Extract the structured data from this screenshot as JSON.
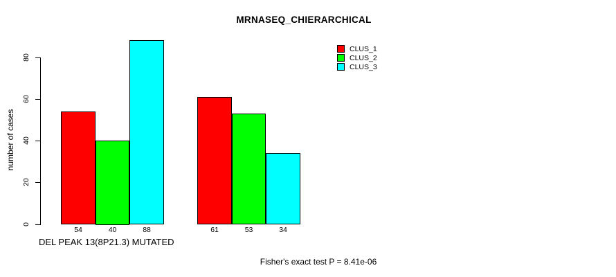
{
  "chart_data": {
    "type": "bar",
    "title": "MRNASEQ_CHIERARCHICAL",
    "ylabel": "number of cases",
    "xlabel": "DEL PEAK 13(8P21.3) MUTATED",
    "annotation": "Fisher's exact test P = 8.41e-06",
    "series": [
      {
        "name": "CLUS_1",
        "color": "#ff0000",
        "values": [
          54,
          61
        ]
      },
      {
        "name": "CLUS_2",
        "color": "#00ff00",
        "values": [
          40,
          53
        ]
      },
      {
        "name": "CLUS_3",
        "color": "#00ffff",
        "values": [
          88,
          34
        ]
      }
    ],
    "yticks": [
      0,
      20,
      40,
      60,
      80
    ],
    "ylim": [
      0,
      88
    ],
    "grid": false,
    "bar_value_labels": [
      [
        54,
        40,
        88
      ],
      [
        61,
        53,
        34
      ]
    ],
    "legend_position": "upper-right-inside",
    "axis_color": "#000000",
    "background": "#ffffff",
    "bar_border_color": "#000000"
  }
}
